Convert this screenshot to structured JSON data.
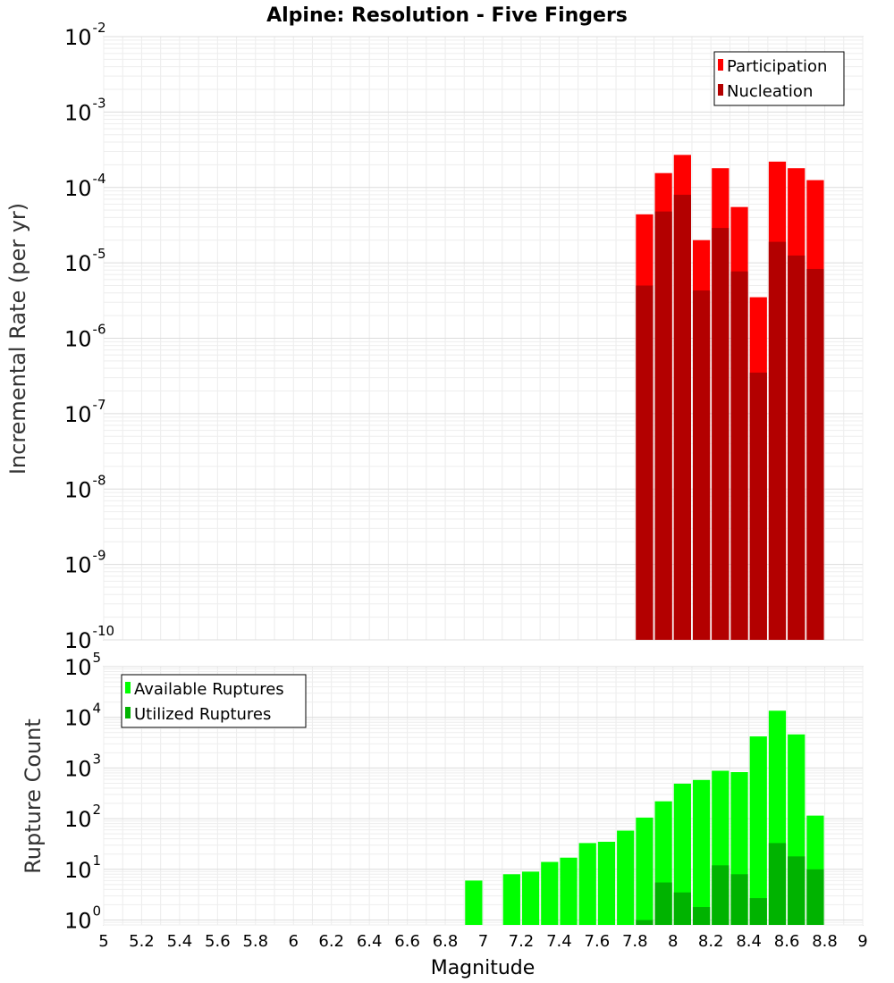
{
  "chart_data": [
    {
      "type": "bar",
      "title": "Alpine: Resolution - Five Fingers",
      "ylabel": "Incremental Rate (per yr)",
      "xlabel": "",
      "yscale": "log",
      "ylim": [
        1e-10,
        0.01
      ],
      "xlim": [
        5,
        9
      ],
      "y_tick_exponents": [
        -10,
        -9,
        -8,
        -7,
        -6,
        -5,
        -4,
        -3,
        -2
      ],
      "grid": true,
      "legend_position": "top-right",
      "bar_width": 0.1,
      "x": [
        7.85,
        7.95,
        8.05,
        8.15,
        8.25,
        8.35,
        8.45,
        8.55,
        8.65,
        8.75
      ],
      "series": [
        {
          "name": "Participation",
          "color": "#ff0000",
          "values": [
            4.4e-05,
            0.000155,
            0.00027,
            2e-05,
            0.00018,
            5.5e-05,
            3.5e-06,
            0.00022,
            0.00018,
            0.000125
          ]
        },
        {
          "name": "Nucleation",
          "color": "#b30000",
          "values": [
            5e-06,
            4.8e-05,
            8e-05,
            4.3e-06,
            2.9e-05,
            7.7e-06,
            3.5e-07,
            1.9e-05,
            1.25e-05,
            8.3e-06
          ]
        }
      ]
    },
    {
      "type": "bar",
      "title": "",
      "ylabel": "Rupture Count",
      "xlabel": "Magnitude",
      "yscale": "log",
      "ylim": [
        0.8,
        100000
      ],
      "xlim": [
        5,
        9
      ],
      "y_tick_exponents": [
        0,
        1,
        2,
        3,
        4,
        5
      ],
      "x_ticks": [
        "5",
        "5.2",
        "5.4",
        "5.6",
        "5.8",
        "6",
        "6.2",
        "6.4",
        "6.6",
        "6.8",
        "7",
        "7.2",
        "7.4",
        "7.6",
        "7.8",
        "8",
        "8.2",
        "8.4",
        "8.6",
        "8.8",
        "9"
      ],
      "grid": true,
      "legend_position": "top-left",
      "bar_width": 0.1,
      "x": [
        6.95,
        7.15,
        7.25,
        7.35,
        7.45,
        7.55,
        7.65,
        7.75,
        7.85,
        7.95,
        8.05,
        8.15,
        8.25,
        8.35,
        8.45,
        8.55,
        8.65,
        8.75
      ],
      "series": [
        {
          "name": "Available Ruptures",
          "color": "#00ff00",
          "values": [
            6,
            8,
            9,
            14,
            17,
            33,
            35,
            58,
            105,
            220,
            490,
            580,
            880,
            830,
            4200,
            13500,
            4600,
            115
          ]
        },
        {
          "name": "Utilized Ruptures",
          "color": "#00b300",
          "values": [
            0,
            0,
            0,
            0,
            0,
            0,
            0,
            0,
            1,
            5.5,
            3.5,
            1.8,
            12,
            8,
            2.7,
            33,
            18,
            10
          ]
        }
      ]
    }
  ]
}
